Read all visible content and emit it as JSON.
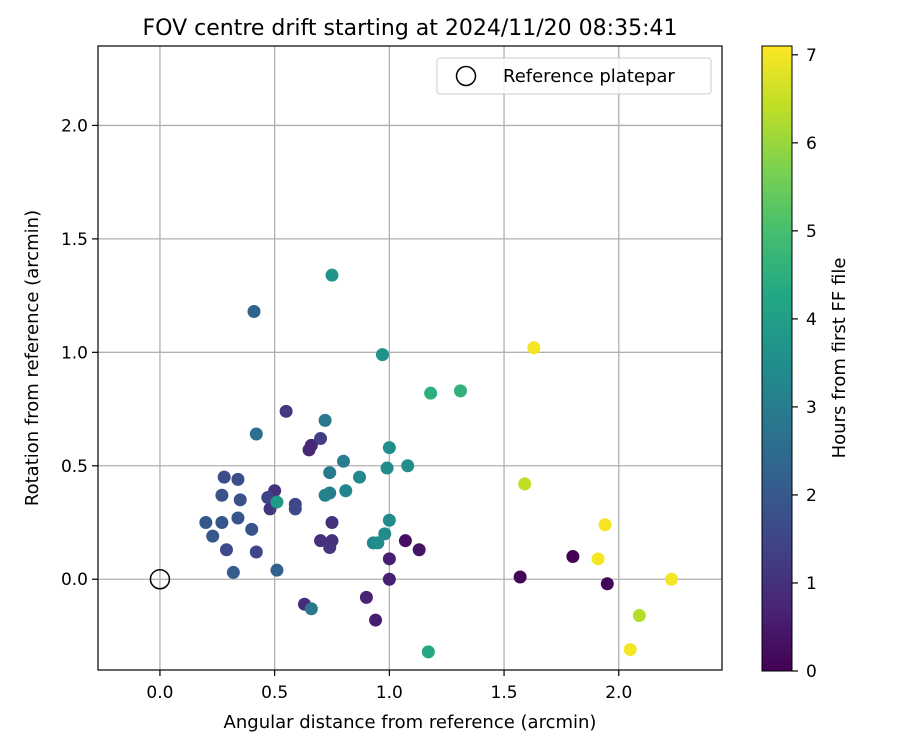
{
  "chart_data": {
    "type": "scatter",
    "title": "FOV centre drift starting at 2024/11/20 08:35:41",
    "xlabel": "Angular distance from reference (arcmin)",
    "ylabel": "Rotation from reference (arcmin)",
    "xlim": [
      -0.27,
      2.45
    ],
    "ylim": [
      -0.4,
      2.35
    ],
    "xticks": [
      "0.0",
      "0.5",
      "1.0",
      "1.5",
      "2.0"
    ],
    "yticks": [
      "0.0",
      "0.5",
      "1.0",
      "1.5",
      "2.0"
    ],
    "grid": true,
    "legend": {
      "position": "top-right",
      "entries": [
        "Reference platepar"
      ]
    },
    "reference_point": {
      "x": 0.0,
      "y": 0.0,
      "label": "Reference platepar"
    },
    "colorbar": {
      "label": "Hours from first FF file",
      "colormap": "viridis",
      "range": [
        0,
        7.1
      ],
      "ticks": [
        "0",
        "1",
        "2",
        "3",
        "4",
        "5",
        "6",
        "7"
      ]
    },
    "points": [
      {
        "x": 1.8,
        "y": 0.1,
        "c": 0.0
      },
      {
        "x": 1.57,
        "y": 0.01,
        "c": 0.1
      },
      {
        "x": 1.95,
        "y": -0.02,
        "c": 0.1
      },
      {
        "x": 1.07,
        "y": 0.17,
        "c": 0.3
      },
      {
        "x": 1.13,
        "y": 0.13,
        "c": 0.4
      },
      {
        "x": 1.0,
        "y": 0.0,
        "c": 0.6
      },
      {
        "x": 1.0,
        "y": 0.09,
        "c": 0.6
      },
      {
        "x": 0.94,
        "y": -0.18,
        "c": 0.6
      },
      {
        "x": 0.9,
        "y": -0.08,
        "c": 0.7
      },
      {
        "x": 0.66,
        "y": 0.59,
        "c": 0.8
      },
      {
        "x": 0.65,
        "y": 0.57,
        "c": 0.8
      },
      {
        "x": 0.63,
        "y": -0.11,
        "c": 0.9
      },
      {
        "x": 0.7,
        "y": 0.17,
        "c": 1.0
      },
      {
        "x": 0.75,
        "y": 0.17,
        "c": 1.0
      },
      {
        "x": 0.75,
        "y": 0.25,
        "c": 1.0
      },
      {
        "x": 0.74,
        "y": 0.14,
        "c": 1.1
      },
      {
        "x": 0.5,
        "y": 0.39,
        "c": 1.0
      },
      {
        "x": 0.48,
        "y": 0.31,
        "c": 1.1
      },
      {
        "x": 0.55,
        "y": 0.74,
        "c": 1.2
      },
      {
        "x": 0.7,
        "y": 0.62,
        "c": 1.3
      },
      {
        "x": 0.47,
        "y": 0.36,
        "c": 1.4
      },
      {
        "x": 0.59,
        "y": 0.33,
        "c": 1.5
      },
      {
        "x": 0.59,
        "y": 0.31,
        "c": 1.6
      },
      {
        "x": 0.42,
        "y": 0.12,
        "c": 1.5
      },
      {
        "x": 0.29,
        "y": 0.13,
        "c": 1.6
      },
      {
        "x": 0.28,
        "y": 0.45,
        "c": 1.7
      },
      {
        "x": 0.34,
        "y": 0.44,
        "c": 1.7
      },
      {
        "x": 0.27,
        "y": 0.37,
        "c": 1.8
      },
      {
        "x": 0.35,
        "y": 0.35,
        "c": 1.8
      },
      {
        "x": 0.34,
        "y": 0.27,
        "c": 1.9
      },
      {
        "x": 0.27,
        "y": 0.25,
        "c": 1.9
      },
      {
        "x": 0.4,
        "y": 0.22,
        "c": 1.9
      },
      {
        "x": 0.2,
        "y": 0.25,
        "c": 2.0
      },
      {
        "x": 0.23,
        "y": 0.19,
        "c": 2.0
      },
      {
        "x": 0.32,
        "y": 0.03,
        "c": 2.1
      },
      {
        "x": 0.51,
        "y": 0.04,
        "c": 2.2
      },
      {
        "x": 0.41,
        "y": 1.18,
        "c": 2.3
      },
      {
        "x": 0.42,
        "y": 0.64,
        "c": 2.6
      },
      {
        "x": 0.72,
        "y": 0.7,
        "c": 2.8
      },
      {
        "x": 0.66,
        "y": -0.13,
        "c": 2.8
      },
      {
        "x": 0.74,
        "y": 0.47,
        "c": 2.9
      },
      {
        "x": 0.8,
        "y": 0.52,
        "c": 3.0
      },
      {
        "x": 0.74,
        "y": 0.38,
        "c": 3.0
      },
      {
        "x": 0.72,
        "y": 0.37,
        "c": 3.1
      },
      {
        "x": 0.81,
        "y": 0.39,
        "c": 3.2
      },
      {
        "x": 0.87,
        "y": 0.45,
        "c": 3.3
      },
      {
        "x": 0.93,
        "y": 0.16,
        "c": 3.3
      },
      {
        "x": 0.98,
        "y": 0.2,
        "c": 3.4
      },
      {
        "x": 0.95,
        "y": 0.16,
        "c": 3.4
      },
      {
        "x": 1.0,
        "y": 0.26,
        "c": 3.4
      },
      {
        "x": 0.99,
        "y": 0.49,
        "c": 3.4
      },
      {
        "x": 1.08,
        "y": 0.5,
        "c": 3.5
      },
      {
        "x": 1.0,
        "y": 0.58,
        "c": 3.5
      },
      {
        "x": 0.97,
        "y": 0.99,
        "c": 3.6
      },
      {
        "x": 0.75,
        "y": 1.34,
        "c": 3.7
      },
      {
        "x": 0.51,
        "y": 0.34,
        "c": 3.9
      },
      {
        "x": 1.17,
        "y": -0.32,
        "c": 4.3
      },
      {
        "x": 1.18,
        "y": 0.82,
        "c": 4.5
      },
      {
        "x": 1.31,
        "y": 0.83,
        "c": 4.6
      },
      {
        "x": 1.59,
        "y": 0.42,
        "c": 6.4
      },
      {
        "x": 2.09,
        "y": -0.16,
        "c": 6.3
      },
      {
        "x": 1.63,
        "y": 1.02,
        "c": 7.0
      },
      {
        "x": 1.94,
        "y": 0.24,
        "c": 7.0
      },
      {
        "x": 1.91,
        "y": 0.09,
        "c": 7.0
      },
      {
        "x": 2.23,
        "y": 0.0,
        "c": 7.0
      },
      {
        "x": 2.05,
        "y": -0.31,
        "c": 7.0
      }
    ]
  }
}
